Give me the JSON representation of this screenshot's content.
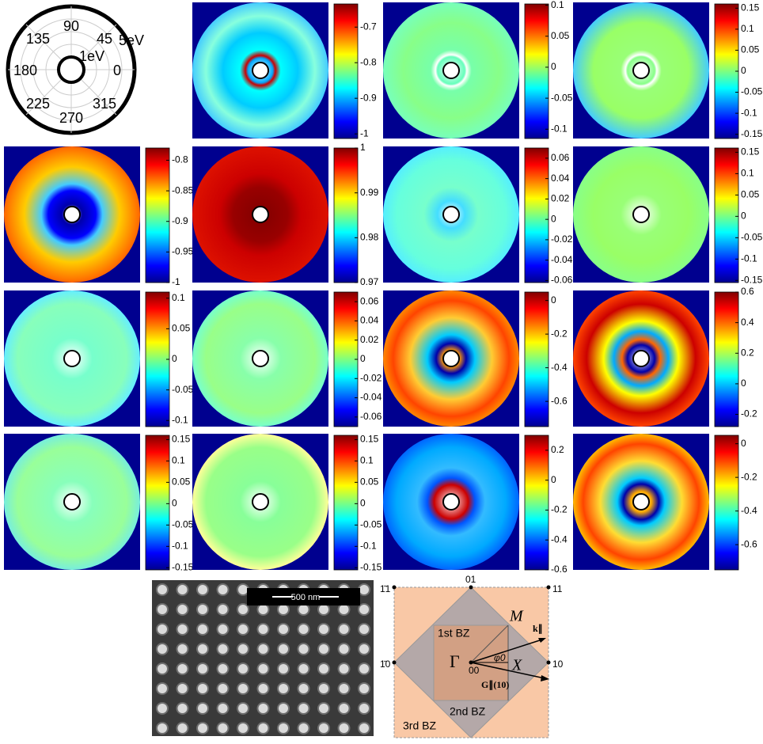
{
  "chart_data": [
    {
      "type": "polar-map",
      "clim": [
        -1.013,
        -0.635
      ],
      "ticks": [
        -0.7,
        -0.8,
        -0.9,
        -1
      ]
    },
    {
      "type": "polar-map",
      "clim": [
        -0.115,
        0.102
      ],
      "ticks": [
        0.1,
        0.05,
        0,
        -0.05,
        -0.1
      ]
    },
    {
      "type": "polar-map",
      "clim": [
        -0.16,
        0.16
      ],
      "ticks": [
        0.15,
        0.1,
        0.05,
        0,
        -0.05,
        -0.1,
        -0.15
      ]
    },
    {
      "type": "polar-map",
      "clim": [
        -1.0,
        -0.78
      ],
      "ticks": [
        -0.8,
        -0.85,
        -0.9,
        -0.95,
        -1
      ]
    },
    {
      "type": "polar-map",
      "clim": [
        0.97,
        1.0
      ],
      "ticks": [
        1,
        0.99,
        0.98,
        0.97
      ]
    },
    {
      "type": "polar-map",
      "clim": [
        -0.062,
        0.07
      ],
      "ticks": [
        0.06,
        0.04,
        0.02,
        0,
        -0.02,
        -0.04,
        -0.06
      ]
    },
    {
      "type": "polar-map",
      "clim": [
        -0.155,
        0.16
      ],
      "ticks": [
        0.15,
        0.1,
        0.05,
        0,
        -0.05,
        -0.1,
        -0.15
      ]
    },
    {
      "type": "polar-map",
      "clim": [
        -0.11,
        0.11
      ],
      "ticks": [
        0.1,
        0.05,
        0,
        -0.05,
        -0.1
      ]
    },
    {
      "type": "polar-map",
      "clim": [
        -0.07,
        0.07
      ],
      "ticks": [
        0.06,
        0.04,
        0.02,
        0,
        -0.02,
        -0.04,
        -0.06
      ]
    },
    {
      "type": "polar-map",
      "clim": [
        -0.75,
        0.05
      ],
      "ticks": [
        0,
        -0.2,
        -0.4,
        -0.6
      ]
    },
    {
      "type": "polar-map",
      "clim": [
        -0.28,
        0.6
      ],
      "ticks": [
        0.6,
        0.4,
        0.2,
        0,
        -0.2
      ]
    },
    {
      "type": "polar-map",
      "clim": [
        -0.155,
        0.16
      ],
      "ticks": [
        0.15,
        0.1,
        0.05,
        0,
        -0.05,
        -0.1,
        -0.15
      ]
    },
    {
      "type": "polar-map",
      "clim": [
        -0.155,
        0.16
      ],
      "ticks": [
        0.15,
        0.1,
        0.05,
        0,
        -0.05,
        -0.1,
        -0.15
      ]
    },
    {
      "type": "polar-map",
      "clim": [
        -0.6,
        0.3
      ],
      "ticks": [
        0.2,
        0,
        -0.2,
        -0.4,
        -0.6
      ]
    },
    {
      "type": "polar-map",
      "clim": [
        -0.75,
        0.05
      ],
      "ticks": [
        0,
        -0.2,
        -0.4,
        -0.6
      ]
    }
  ],
  "polar_key": {
    "angles": [
      "90",
      "45",
      "135",
      "180",
      "0",
      "225",
      "270",
      "315"
    ],
    "inner": "1eV",
    "outer": "5eV"
  },
  "sem_image": {
    "scale_bar": "500 nm"
  },
  "bz_diagram": {
    "corner_tl": "1̄1",
    "top": "01",
    "corner_tr": "11",
    "left": "1̄0",
    "right": "10",
    "M": "M",
    "k": "k∥",
    "gamma": "Γ",
    "phi": "φ0",
    "X": "X",
    "origin": "00",
    "G": "G∥(10)",
    "first": "1st BZ",
    "second": "2nd BZ",
    "third": "3rd BZ"
  }
}
